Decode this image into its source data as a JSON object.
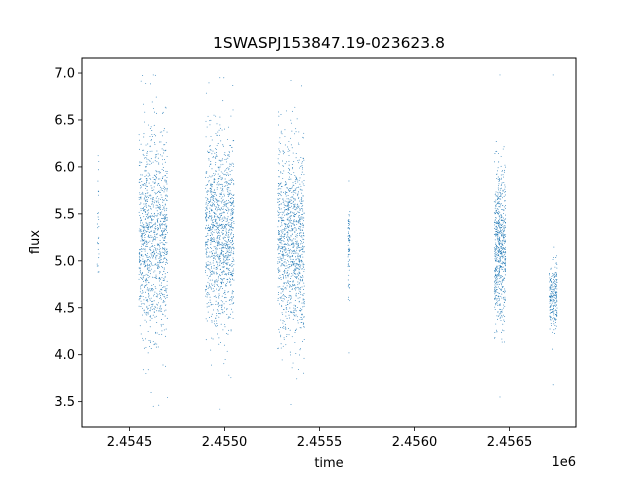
{
  "chart_data": {
    "type": "scatter",
    "title": "1SWASPJ153847.19-023623.8",
    "xlabel": "time",
    "ylabel": "flux",
    "x_offset_label": "1e6",
    "xlim": [
      2.45425,
      2.45685
    ],
    "ylim": [
      3.23,
      7.16
    ],
    "x_ticks": [
      2.4545,
      2.455,
      2.4555,
      2.456,
      2.4565
    ],
    "x_tick_labels": [
      "2.4545",
      "2.4550",
      "2.4555",
      "2.4560",
      "2.4565"
    ],
    "y_ticks": [
      3.5,
      4.0,
      4.5,
      5.0,
      5.5,
      6.0,
      6.5,
      7.0
    ],
    "y_tick_labels": [
      "3.5",
      "4.0",
      "4.5",
      "5.0",
      "5.5",
      "6.0",
      "6.5",
      "7.0"
    ],
    "grid": false,
    "marker_color": "#1f77b4",
    "clusters": [
      {
        "x_range": [
          2.45433,
          2.45434
        ],
        "y_range": [
          4.88,
          6.12
        ],
        "center": 5.4,
        "spread": 0.3,
        "count": 25
      },
      {
        "x_range": [
          2.45455,
          2.4547
        ],
        "y_range": [
          3.45,
          6.98
        ],
        "center": 5.25,
        "spread": 0.55,
        "count": 1100
      },
      {
        "x_range": [
          2.4549,
          2.45505
        ],
        "y_range": [
          3.42,
          6.95
        ],
        "center": 5.3,
        "spread": 0.5,
        "count": 1200
      },
      {
        "x_range": [
          2.45528,
          2.45542
        ],
        "y_range": [
          3.47,
          6.92
        ],
        "center": 5.2,
        "spread": 0.5,
        "count": 1100
      },
      {
        "x_range": [
          2.45565,
          2.45566
        ],
        "y_range": [
          4.02,
          5.85
        ],
        "center": 5.1,
        "spread": 0.25,
        "count": 70
      },
      {
        "x_range": [
          2.45642,
          2.45648
        ],
        "y_range": [
          3.55,
          6.98
        ],
        "center": 5.15,
        "spread": 0.42,
        "count": 650
      },
      {
        "x_range": [
          2.45671,
          2.45675
        ],
        "y_range": [
          3.68,
          6.98
        ],
        "center": 4.6,
        "spread": 0.18,
        "count": 220
      }
    ]
  }
}
